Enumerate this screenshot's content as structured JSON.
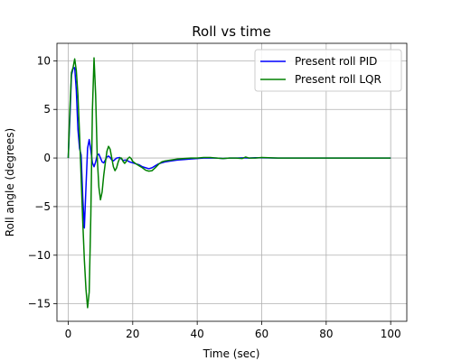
{
  "chart_data": {
    "type": "line",
    "title": "Roll vs time",
    "xlabel": "Time (sec)",
    "ylabel": "Roll angle (degrees)",
    "xlim": [
      -3.5,
      105
    ],
    "ylim": [
      -16.8,
      11.8
    ],
    "xticks": [
      0,
      20,
      40,
      60,
      80,
      100
    ],
    "yticks": [
      10,
      5,
      0,
      -5,
      -10,
      -15
    ],
    "xtick_labels": [
      "0",
      "20",
      "40",
      "60",
      "80",
      "100"
    ],
    "ytick_labels": [
      "10",
      "5",
      "0",
      "−5",
      "−10",
      "−15"
    ],
    "grid": true,
    "legend_position": "top-right",
    "series": [
      {
        "name": "Present roll PID",
        "color": "#0000ff",
        "x": [
          0,
          0.5,
          1,
          1.5,
          2,
          2.5,
          3,
          3.5,
          4,
          4.5,
          5,
          5.5,
          6,
          6.5,
          7,
          7.5,
          8,
          8.5,
          9,
          9.5,
          10,
          10.5,
          11,
          11.5,
          12,
          12.5,
          13,
          13.5,
          14,
          14.5,
          15,
          16,
          17,
          18,
          19,
          20,
          21,
          22,
          23,
          24,
          25,
          26,
          27,
          28,
          29,
          30,
          32,
          34,
          36,
          38,
          40,
          42,
          44,
          46,
          48,
          50,
          52,
          54,
          56,
          58,
          60,
          65,
          70,
          75,
          80,
          85,
          90,
          95,
          100
        ],
        "y": [
          0,
          4,
          8.5,
          9.2,
          9.3,
          7,
          3,
          1,
          0.3,
          -4,
          -7.2,
          -3,
          1,
          1.9,
          0.8,
          -0.5,
          -0.9,
          -0.4,
          0.3,
          0.4,
          0,
          -0.4,
          -0.5,
          -0.2,
          0.1,
          0.2,
          0.05,
          -0.2,
          -0.3,
          -0.15,
          0,
          0.05,
          -0.25,
          -0.2,
          -0.4,
          -0.5,
          -0.6,
          -0.7,
          -0.9,
          -1.0,
          -1.1,
          -1.0,
          -0.8,
          -0.6,
          -0.5,
          -0.4,
          -0.3,
          -0.2,
          -0.15,
          -0.1,
          -0.05,
          0,
          0,
          0,
          -0.05,
          0,
          0,
          0.02,
          0,
          0.03,
          0.02,
          0,
          0,
          0,
          0,
          0,
          0,
          0,
          0
        ]
      },
      {
        "name": "Present roll LQR",
        "color": "#008000",
        "x": [
          0,
          0.5,
          1,
          1.5,
          2,
          2.5,
          3,
          3.5,
          4,
          4.5,
          5,
          5.5,
          6,
          6.5,
          7,
          7.5,
          8,
          8.5,
          9,
          9.5,
          10,
          10.5,
          11,
          11.5,
          12,
          12.5,
          13,
          13.5,
          14,
          14.5,
          15,
          15.5,
          16,
          16.5,
          17,
          17.5,
          18,
          18.5,
          19,
          19.5,
          20,
          21,
          22,
          23,
          24,
          25,
          26,
          27,
          28,
          29,
          30,
          32,
          34,
          36,
          38,
          40,
          42,
          44,
          46,
          48,
          50,
          52,
          54,
          55,
          56,
          58,
          60,
          65,
          70,
          80,
          90,
          100
        ],
        "y": [
          0,
          5,
          8.8,
          9.3,
          10.2,
          9,
          6.5,
          2.5,
          -2,
          -6.5,
          -10.5,
          -13.5,
          -15.4,
          -13.8,
          -6,
          5,
          10.3,
          6.5,
          0,
          -3,
          -4.3,
          -3.5,
          -1.8,
          -0.5,
          0.7,
          1.2,
          0.9,
          0,
          -0.9,
          -1.3,
          -1.0,
          -0.4,
          0,
          0,
          -0.35,
          -0.55,
          -0.35,
          -0.05,
          0.1,
          -0.05,
          -0.35,
          -0.6,
          -0.8,
          -1.0,
          -1.25,
          -1.35,
          -1.3,
          -1.0,
          -0.65,
          -0.4,
          -0.3,
          -0.2,
          -0.1,
          -0.05,
          0,
          0,
          0.05,
          0.05,
          0,
          -0.05,
          0,
          0,
          -0.05,
          0.1,
          0,
          0,
          0.05,
          0,
          0,
          0,
          0,
          0
        ]
      }
    ]
  }
}
